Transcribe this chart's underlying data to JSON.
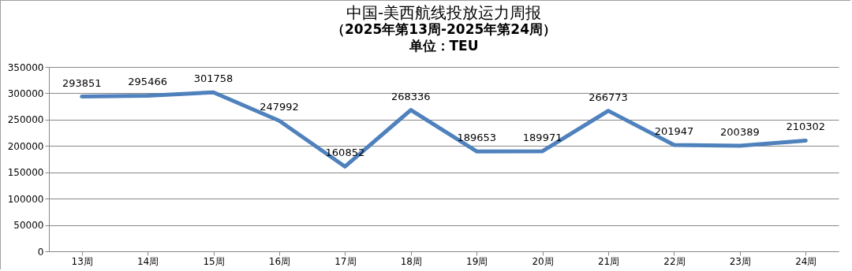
{
  "chart_data": {
    "type": "line",
    "title": "中国-美西航线投放运力周报",
    "subtitle": "（2025年第13周-2025年第24周）",
    "annotations": [
      "单位：TEU"
    ],
    "categories": [
      "13周",
      "14周",
      "15周",
      "16周",
      "17周",
      "18周",
      "19周",
      "20周",
      "21周",
      "22周",
      "23周",
      "24周"
    ],
    "series": [
      {
        "color": "#4f81bd",
        "values": [
          293851,
          295466,
          301758,
          247992,
          160852,
          268336,
          189653,
          189971,
          266773,
          201947,
          200389,
          210302
        ]
      }
    ],
    "ylim": [
      0,
      350000
    ],
    "yticks": [
      0,
      50000,
      100000,
      150000,
      200000,
      250000,
      300000,
      350000
    ],
    "grid": "y",
    "data_labels": true,
    "line_style": "solid"
  }
}
